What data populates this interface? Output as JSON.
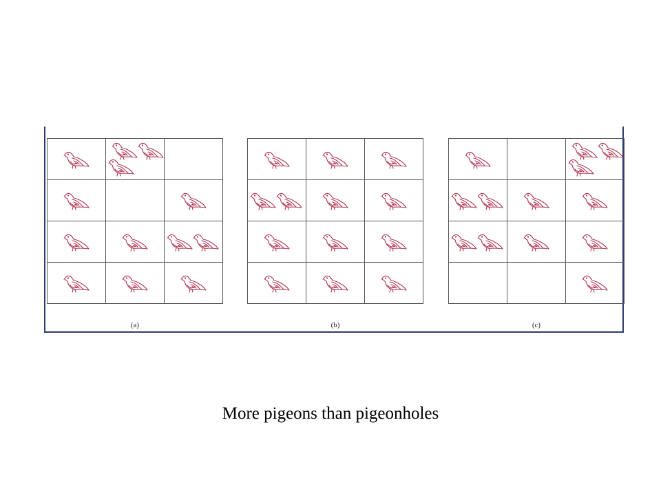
{
  "figure": {
    "panels": [
      {
        "label": "(a)",
        "counts": [
          1,
          3,
          0,
          1,
          0,
          1,
          1,
          1,
          2,
          1,
          1,
          1
        ]
      },
      {
        "label": "(b)",
        "counts": [
          1,
          1,
          1,
          2,
          1,
          1,
          1,
          1,
          1,
          1,
          1,
          1
        ]
      },
      {
        "label": "(c)",
        "counts": [
          1,
          0,
          3,
          2,
          1,
          1,
          2,
          1,
          1,
          0,
          0,
          1
        ]
      }
    ],
    "pigeon_color": "#b0314f",
    "grid_color": "#555555",
    "frame_color": "#2e3b6e"
  },
  "caption": "More pigeons than pigeonholes"
}
